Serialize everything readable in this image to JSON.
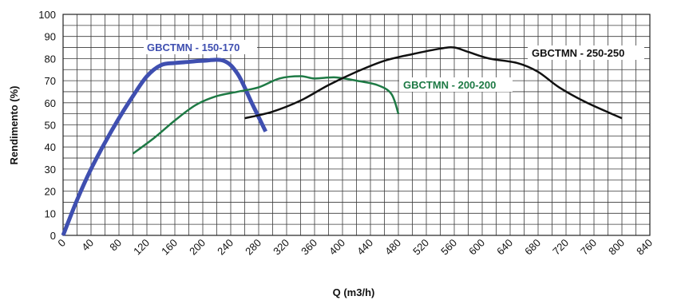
{
  "chart_data": {
    "type": "line",
    "xlabel": "Q (m3/h)",
    "ylabel": "Rendimento (%)",
    "xlim": [
      0,
      840
    ],
    "ylim": [
      0,
      100
    ],
    "x_ticks": [
      0,
      40,
      80,
      120,
      160,
      200,
      240,
      280,
      320,
      360,
      400,
      440,
      480,
      520,
      560,
      600,
      640,
      680,
      720,
      760,
      800,
      840
    ],
    "y_ticks": [
      0,
      10,
      20,
      30,
      40,
      50,
      60,
      70,
      80,
      90,
      100
    ],
    "x_minor_step": 20,
    "y_minor_step": 5,
    "grid": true,
    "series": [
      {
        "name": "GBCTMN - 150-170",
        "color": "#3f4fb0",
        "line_width": 5,
        "points": [
          [
            0,
            0
          ],
          [
            20,
            16
          ],
          [
            40,
            30
          ],
          [
            60,
            42
          ],
          [
            80,
            53
          ],
          [
            100,
            63
          ],
          [
            120,
            72
          ],
          [
            140,
            77
          ],
          [
            160,
            78
          ],
          [
            180,
            78.5
          ],
          [
            200,
            79
          ],
          [
            230,
            79
          ],
          [
            250,
            73
          ],
          [
            270,
            60
          ],
          [
            290,
            47
          ]
        ]
      },
      {
        "name": "GBCTMN - 200-200",
        "color": "#1e7a45",
        "line_width": 2.5,
        "points": [
          [
            100,
            37
          ],
          [
            130,
            44
          ],
          [
            160,
            52
          ],
          [
            190,
            59
          ],
          [
            220,
            63
          ],
          [
            250,
            65
          ],
          [
            280,
            67
          ],
          [
            310,
            71
          ],
          [
            340,
            72
          ],
          [
            360,
            71
          ],
          [
            390,
            71.5
          ],
          [
            420,
            70
          ],
          [
            450,
            68
          ],
          [
            470,
            64
          ],
          [
            480,
            55
          ]
        ]
      },
      {
        "name": "GBCTMN - 250-250",
        "color": "#111111",
        "line_width": 2.5,
        "points": [
          [
            260,
            53
          ],
          [
            300,
            56
          ],
          [
            340,
            61
          ],
          [
            380,
            68
          ],
          [
            420,
            74
          ],
          [
            460,
            79
          ],
          [
            500,
            82
          ],
          [
            540,
            84.5
          ],
          [
            560,
            85
          ],
          [
            580,
            83
          ],
          [
            610,
            80
          ],
          [
            650,
            78
          ],
          [
            680,
            74
          ],
          [
            710,
            67
          ],
          [
            750,
            60
          ],
          [
            800,
            53
          ]
        ]
      }
    ]
  }
}
